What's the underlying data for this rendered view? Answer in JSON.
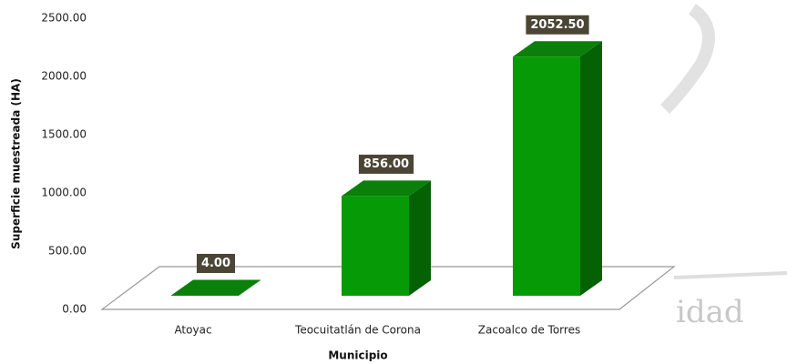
{
  "chart_data": {
    "type": "bar3d",
    "watermark": "idad",
    "y_label": "Superficie muestreada (HA)",
    "x_label": "Municipio",
    "categories": [
      "Atoyac",
      "Teocuitatlán de Corona",
      "Zacoalco de Torres"
    ],
    "values": [
      4,
      856,
      2052.5
    ],
    "value_labels": [
      "4.00",
      "856.00",
      "2052.50"
    ],
    "color": "#079a07",
    "ylim": [
      0,
      2500
    ],
    "yticks": [
      {
        "value": 0,
        "label": "0.00"
      },
      {
        "value": 500,
        "label": "500.00"
      },
      {
        "value": 1000,
        "label": "1000.00"
      },
      {
        "value": 1500,
        "label": "1500.00"
      },
      {
        "value": 2000,
        "label": "2000.00"
      },
      {
        "value": 2500,
        "label": "2500.00"
      }
    ]
  }
}
